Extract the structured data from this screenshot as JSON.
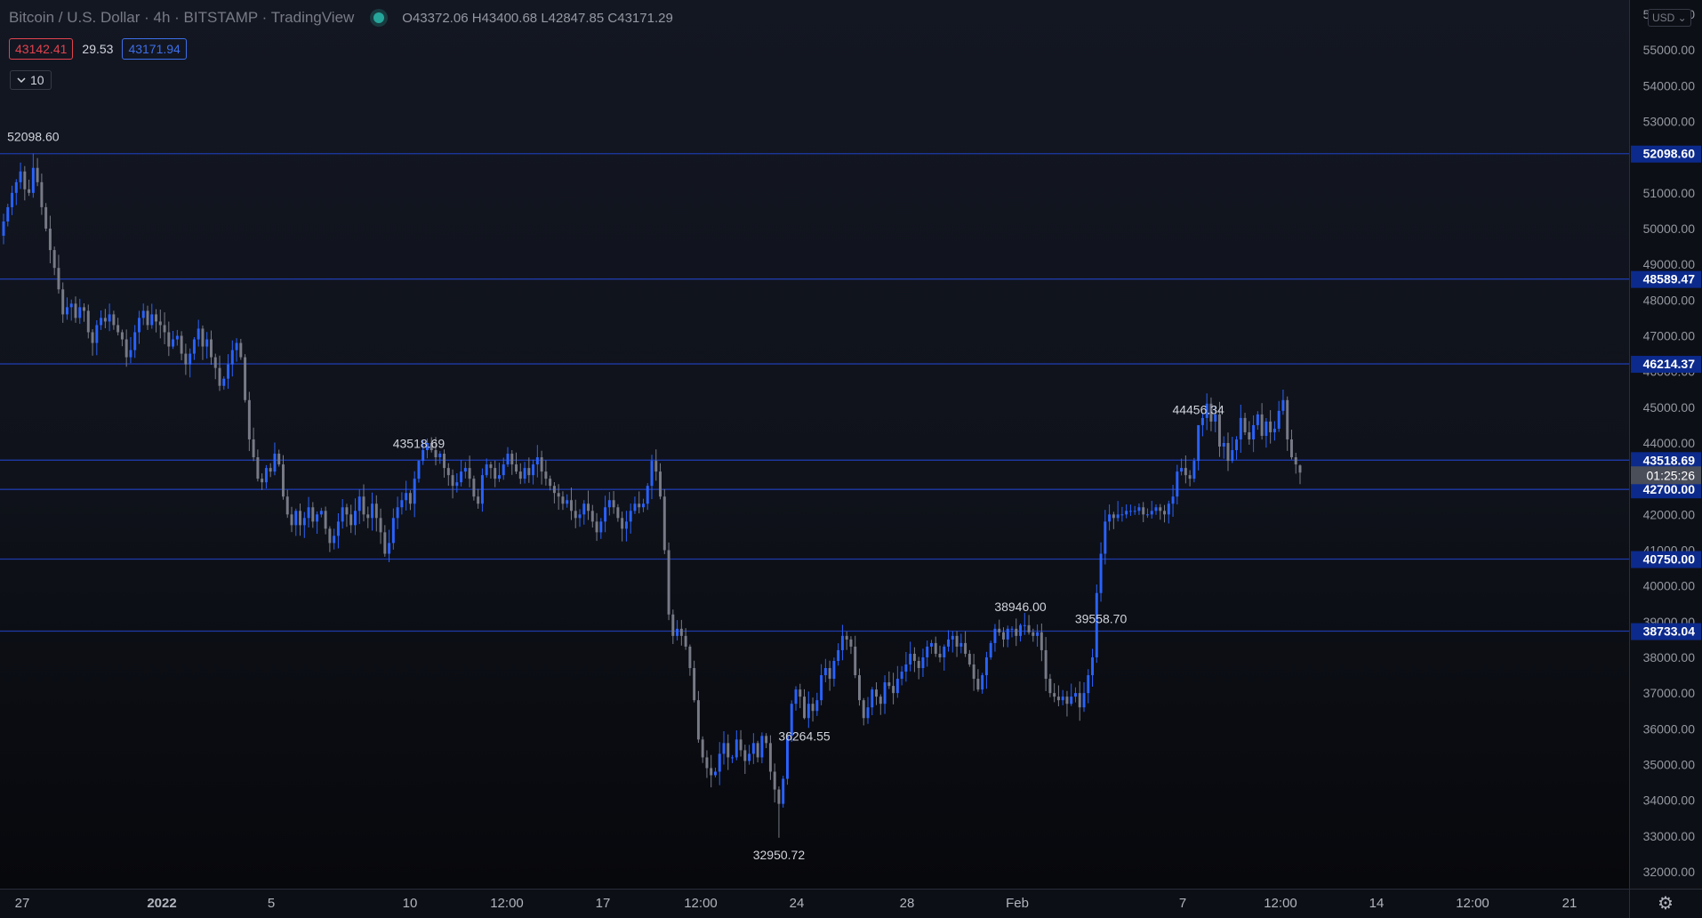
{
  "header": {
    "title": "Bitcoin / U.S. Dollar · 4h · BITSTAMP · TradingView",
    "open_label": "O",
    "open": "43372.06",
    "high_label": "H",
    "high": "43400.68",
    "low_label": "L",
    "low": "42847.85",
    "close_label": "C",
    "close": "43171.29"
  },
  "quote": {
    "bid": "43142.41",
    "spread": "29.53",
    "ask": "43171.94"
  },
  "indicator_toggle": {
    "label": "10",
    "icon": "chevron-down-icon"
  },
  "currency_selector": {
    "label": "USD"
  },
  "settings": {
    "icon": "gear-icon"
  },
  "colors": {
    "up": "#2962ff",
    "down": "#787b86",
    "level_line": "#1e3aa8",
    "level_label_bg": "#0c2a8c",
    "countdown_bg": "#4a4e59"
  },
  "countdown": {
    "label": "01:25:26",
    "price": 43171.29
  },
  "chart_data": {
    "type": "candlestick",
    "symbol": "BTCUSD",
    "interval": "4h",
    "ylim": [
      31700,
      56200
    ],
    "y_ticks": [
      "32000.00",
      "33000.00",
      "34000.00",
      "35000.00",
      "36000.00",
      "37000.00",
      "38000.00",
      "39000.00",
      "40000.00",
      "41000.00",
      "42000.00",
      "43000.00",
      "44000.00",
      "45000.00",
      "46000.00",
      "47000.00",
      "48000.00",
      "49000.00",
      "50000.00",
      "51000.00",
      "52000.00",
      "53000.00",
      "54000.00",
      "55000.00",
      "56000.00"
    ],
    "x_ticks": [
      "27",
      "2022",
      "5",
      "10",
      "12:00",
      "17",
      "12:00",
      "24",
      "28",
      "Feb",
      "7",
      "12:00",
      "14",
      "12:00",
      "21"
    ],
    "horizontal_levels": [
      "52098.60",
      "48589.47",
      "46214.37",
      "43518.69",
      "42700.00",
      "40750.00",
      "38733.04"
    ],
    "swing_labels": [
      {
        "text": "52098.60",
        "value": 52098.6,
        "pos": "above"
      },
      {
        "text": "44456.34",
        "value": 44456.34,
        "pos": "above"
      },
      {
        "text": "43518.69",
        "value": 43518.69,
        "pos": "above"
      },
      {
        "text": "39558.70",
        "value": 39558.7,
        "pos": "below"
      },
      {
        "text": "38946.00",
        "value": 38946.0,
        "pos": "above"
      },
      {
        "text": "36264.55",
        "value": 36264.55,
        "pos": "below"
      },
      {
        "text": "32950.72",
        "value": 32950.72,
        "pos": "below"
      }
    ],
    "closes": [
      50200,
      50600,
      51000,
      51300,
      51600,
      51100,
      51000,
      51700,
      51300,
      50600,
      50000,
      49400,
      48900,
      48300,
      47600,
      47800,
      47900,
      47500,
      47800,
      47700,
      47100,
      46800,
      47300,
      47500,
      47400,
      47600,
      47300,
      47100,
      46900,
      46400,
      46600,
      47100,
      47500,
      47700,
      47300,
      47600,
      47400,
      47300,
      47100,
      46700,
      46900,
      47000,
      46500,
      46200,
      46500,
      46900,
      47200,
      46700,
      46900,
      46400,
      46100,
      45600,
      45800,
      46200,
      46600,
      46800,
      46400,
      45200,
      44100,
      43600,
      43000,
      42900,
      43300,
      43200,
      43700,
      43400,
      42500,
      42000,
      41700,
      42100,
      41700,
      41900,
      42200,
      41800,
      42000,
      42100,
      41600,
      41200,
      41400,
      41800,
      42200,
      42000,
      41700,
      42100,
      42500,
      42000,
      41900,
      42300,
      41900,
      41500,
      40900,
      41200,
      41900,
      42200,
      42400,
      42600,
      42300,
      43000,
      43500,
      43800,
      44000,
      43800,
      43600,
      43700,
      43300,
      43100,
      42800,
      42900,
      43200,
      43300,
      43000,
      42500,
      42300,
      43100,
      43400,
      43300,
      43000,
      43100,
      43400,
      43700,
      43400,
      43200,
      43000,
      43300,
      43100,
      43400,
      43600,
      43200,
      43000,
      42800,
      42600,
      42500,
      42300,
      42400,
      42100,
      41900,
      42000,
      42300,
      42100,
      41800,
      41500,
      41800,
      42200,
      42400,
      42200,
      41900,
      41600,
      41800,
      42100,
      42300,
      42200,
      42300,
      42800,
      43500,
      43200,
      42500,
      41000,
      39200,
      38600,
      38800,
      38600,
      38300,
      37700,
      36800,
      35700,
      35200,
      34900,
      34700,
      34800,
      35300,
      35600,
      35200,
      35200,
      35700,
      35400,
      35100,
      35300,
      35600,
      35200,
      35800,
      35600,
      34800,
      34300,
      33900,
      34600,
      35800,
      36700,
      37100,
      36900,
      36300,
      36700,
      36500,
      36800,
      37500,
      37700,
      37400,
      37900,
      38200,
      38600,
      38500,
      38300,
      37500,
      36800,
      36300,
      36600,
      37100,
      36900,
      36700,
      37300,
      37200,
      37000,
      37400,
      37600,
      37800,
      38100,
      37900,
      37700,
      38000,
      38300,
      38400,
      38100,
      38000,
      38300,
      38500,
      38600,
      38300,
      38400,
      38100,
      37800,
      37400,
      37100,
      37500,
      38000,
      38400,
      38800,
      38700,
      38500,
      38800,
      38800,
      38600,
      38900,
      38900,
      38700,
      38600,
      38700,
      38200,
      37400,
      37000,
      36900,
      36800,
      36900,
      36700,
      36900,
      37000,
      36600,
      37000,
      37500,
      38000,
      39800,
      40900,
      41800,
      42000,
      41900,
      42000,
      42000,
      42100,
      42100,
      42100,
      42200,
      42000,
      42000,
      42100,
      42200,
      42100,
      42000,
      42300,
      42500,
      43200,
      43300,
      43100,
      43000,
      43500,
      44500,
      44700,
      45100,
      44600,
      44800,
      43900,
      44000,
      43500,
      43800,
      44100,
      44700,
      44300,
      44100,
      44500,
      44800,
      44200,
      44600,
      44300,
      44400,
      44900,
      45200,
      44100,
      43600,
      43400,
      43171.29
    ]
  }
}
